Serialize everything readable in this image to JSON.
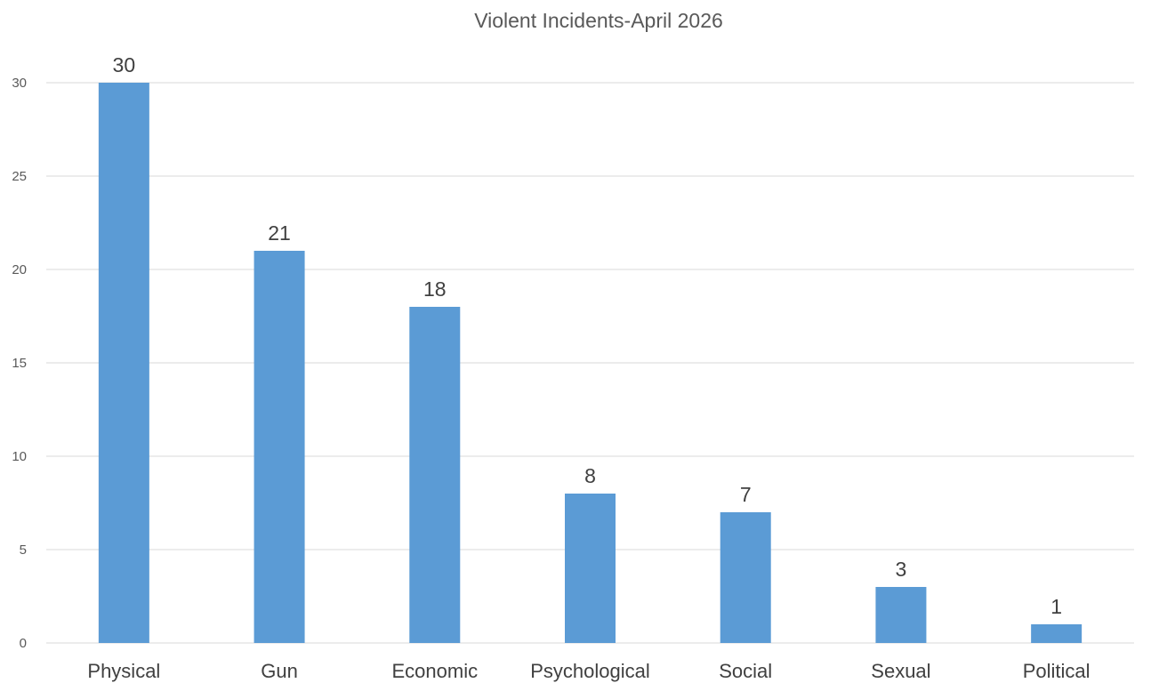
{
  "chart_data": {
    "type": "bar",
    "title": "Violent Incidents-April 2026",
    "xlabel": "",
    "ylabel": "",
    "categories": [
      "Physical",
      "Gun",
      "Economic",
      "Psychological",
      "Social",
      "Sexual",
      "Political"
    ],
    "values": [
      30,
      21,
      18,
      8,
      7,
      3,
      1
    ],
    "y_ticks": [
      0,
      5,
      10,
      15,
      20,
      25,
      30
    ],
    "ylim": [
      0,
      30
    ],
    "grid": true,
    "legend": "none",
    "data_labels": true,
    "bar_color": "#5b9bd5"
  }
}
